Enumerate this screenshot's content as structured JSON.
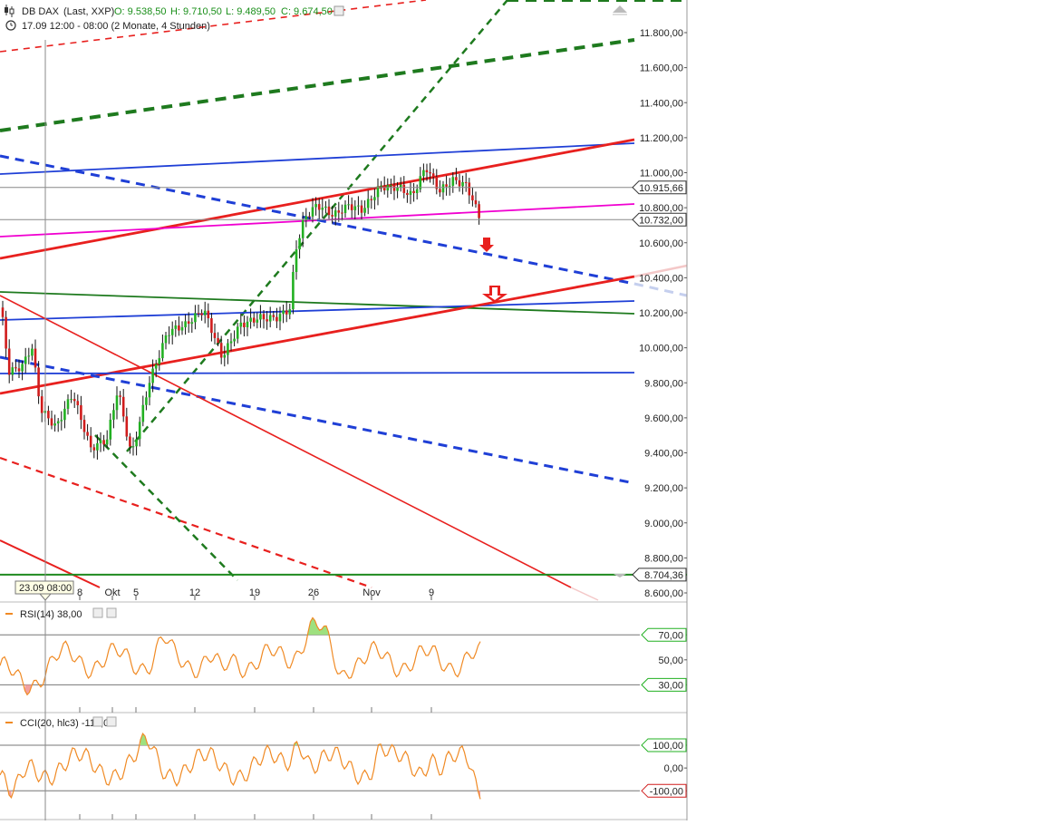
{
  "header": {
    "symbol": "DB DAX",
    "source": "(Last, XXP)",
    "open": "O: 9.538,50",
    "high": "H: 9.710,50",
    "low": "L: 9.489,50",
    "close": "C: 9.674,50",
    "period": "17.09 12:00 - 08:00 (2 Monate, 4 Stunden)"
  },
  "crosshair": {
    "time_label": "23.09 08:00"
  },
  "colors": {
    "up": "#22b022",
    "down": "#d01c1c",
    "wick": "#111111",
    "blue": "#1f3fd6",
    "red": "#e8201e",
    "green": "#1e7a1e",
    "magenta": "#f000d0",
    "orange": "#f08a24",
    "fill_over": "#9ee07f",
    "fill_under": "#f2a0a0"
  },
  "chart_data": [
    {
      "type": "candlestick",
      "title": "DB DAX (Last, XXP)",
      "timeframe": "4 Stunden",
      "x_tick_labels": [
        "8",
        "Okt",
        "5",
        "12",
        "19",
        "26",
        "Nov",
        "9"
      ],
      "y_tick_labels": [
        "11.800,00",
        "11.600,00",
        "11.400,00",
        "11.200,00",
        "11.000,00",
        "10.800,00",
        "10.600,00",
        "10.400,00",
        "10.200,00",
        "10.000,00",
        "9.800,00",
        "9.600,00",
        "9.400,00",
        "9.200,00",
        "9.000,00",
        "8.800,00",
        "8.600,00"
      ],
      "ylim": [
        8600,
        12000
      ],
      "price_labels": [
        {
          "label": "10.915,66",
          "value": 10915.66
        },
        {
          "label": "10.732,00",
          "value": 10732
        },
        {
          "label": "8.704,36",
          "value": 8704.36
        }
      ],
      "key_points": [
        {
          "x": "17.09",
          "y": 10200
        },
        {
          "x": "Okt",
          "y": 9350
        },
        {
          "x": "20.10",
          "y": 10250
        },
        {
          "x": "22.10",
          "y": 10750
        },
        {
          "x": "Nov",
          "y": 10950
        },
        {
          "x": "09.11",
          "y": 11050
        },
        {
          "x": "16.11",
          "y": 10732
        }
      ],
      "markers": [
        "down-arrow-small",
        "down-arrow-large"
      ]
    },
    {
      "type": "line",
      "title": "RSI(14)",
      "legend": "RSI(14)  38,00",
      "current": 38.0,
      "levels": [
        70,
        50,
        30
      ],
      "level_labels": [
        "70,00",
        "50,00",
        "30,00"
      ]
    },
    {
      "type": "line",
      "title": "CCI(20, hlc3)",
      "legend": "CCI(20, hlc3)  -113,00",
      "current": -113.0,
      "levels": [
        100,
        0,
        -100
      ],
      "level_labels": [
        "100,00",
        "0,00",
        "-100,00"
      ]
    }
  ]
}
